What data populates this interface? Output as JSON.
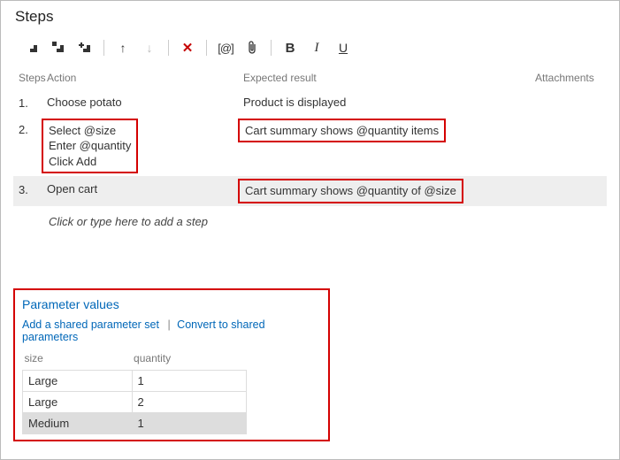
{
  "title": "Steps",
  "toolbar": {
    "icons": [
      "insert-step",
      "insert-shared-step",
      "add-step",
      "move-up",
      "move-down",
      "delete",
      "mention",
      "attach",
      "bold",
      "italic",
      "underline"
    ]
  },
  "columns": {
    "steps": "Steps",
    "action": "Action",
    "expected": "Expected result",
    "attachments": "Attachments"
  },
  "steps": [
    {
      "num": "1.",
      "action": "Choose potato",
      "expected": "Product is displayed",
      "highlight": false,
      "selected": false
    },
    {
      "num": "2.",
      "action": "Select @size\nEnter @quantity\nClick Add",
      "expected": "Cart summary shows @quantity items",
      "highlight": true,
      "selected": false
    },
    {
      "num": "3.",
      "action": "Open cart",
      "expected": "Cart summary shows @quantity of @size",
      "highlight": true,
      "selected": true,
      "highlightActionOnlyExpected": true
    }
  ],
  "placeholder": "Click or type here to add a step",
  "params": {
    "title": "Parameter values",
    "link_add": "Add a shared parameter set",
    "link_convert": "Convert to shared parameters",
    "headers": {
      "size": "size",
      "quantity": "quantity"
    },
    "rows": [
      {
        "size": "Large",
        "quantity": "1",
        "selected": false
      },
      {
        "size": "Large",
        "quantity": "2",
        "selected": false
      },
      {
        "size": "Medium",
        "quantity": "1",
        "selected": true
      }
    ]
  }
}
